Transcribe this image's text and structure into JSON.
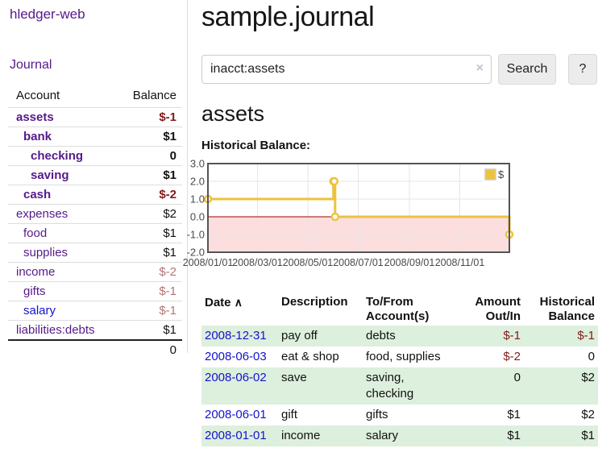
{
  "app": {
    "title": "hledger-web",
    "nav_journal": "Journal"
  },
  "colors": {
    "link_purple": "#551a8b",
    "link_blue": "#1414cc",
    "negative": "#821a1a",
    "negative_dim": "#b37676",
    "row_stripe_green": "#ddefdd",
    "sidebar_border": "#dddddd",
    "chart_series_yellow": "#edc240",
    "chart_negative_region": "#fcdede",
    "chart_zero_line": "#a00000",
    "chart_grid": "#e6e6e6",
    "chart_border": "#545454"
  },
  "sidebar": {
    "header": {
      "account": "Account",
      "balance": "Balance"
    },
    "accounts": [
      {
        "name": "assets",
        "level": 0,
        "bold": true,
        "link_color": "purple",
        "balance": "$-1",
        "balance_class": "neg"
      },
      {
        "name": "bank",
        "level": 1,
        "bold": true,
        "link_color": "purple",
        "balance": "$1",
        "balance_class": "pos"
      },
      {
        "name": "checking",
        "level": 2,
        "bold": true,
        "link_color": "purple",
        "balance": "0",
        "balance_class": "pos"
      },
      {
        "name": "saving",
        "level": 2,
        "bold": true,
        "link_color": "purple",
        "balance": "$1",
        "balance_class": "pos"
      },
      {
        "name": "cash",
        "level": 1,
        "bold": true,
        "link_color": "purple",
        "balance": "$-2",
        "balance_class": "neg"
      },
      {
        "name": "expenses",
        "level": 0,
        "bold": false,
        "link_color": "purple",
        "balance": "$2",
        "balance_class": "pos"
      },
      {
        "name": "food",
        "level": 1,
        "bold": false,
        "link_color": "purple",
        "balance": "$1",
        "balance_class": "pos"
      },
      {
        "name": "supplies",
        "level": 1,
        "bold": false,
        "link_color": "purple",
        "balance": "$1",
        "balance_class": "pos"
      },
      {
        "name": "income",
        "level": 0,
        "bold": false,
        "link_color": "purple",
        "balance": "$-2",
        "balance_class": "negdim"
      },
      {
        "name": "gifts",
        "level": 1,
        "bold": false,
        "link_color": "purple",
        "balance": "$-1",
        "balance_class": "negdim"
      },
      {
        "name": "salary",
        "level": 1,
        "bold": false,
        "link_color": "blue",
        "balance": "$-1",
        "balance_class": "negdim"
      },
      {
        "name": "liabilities:debts",
        "level": 0,
        "bold": false,
        "link_color": "purple",
        "balance": "$1",
        "balance_class": "pos"
      }
    ],
    "total": "0"
  },
  "header": {
    "title": "sample.journal"
  },
  "search": {
    "value": "inacct:assets",
    "clear_icon": "×",
    "button_label": "Search",
    "help_label": "?"
  },
  "account_page": {
    "title": "assets",
    "chart_label": "Historical Balance:"
  },
  "chart_data": {
    "type": "line",
    "title": "Historical Balance:",
    "step": true,
    "series": [
      {
        "name": "$",
        "color": "#edc240",
        "points": [
          {
            "x": "2008-01-01",
            "y": 1
          },
          {
            "x": "2008-06-01",
            "y": 2
          },
          {
            "x": "2008-06-02",
            "y": 2
          },
          {
            "x": "2008-06-03",
            "y": 0
          },
          {
            "x": "2008-12-31",
            "y": -1
          }
        ]
      }
    ],
    "x_range": [
      "2008-01-01",
      "2008-12-31"
    ],
    "x_ticks": [
      "2008/01/01",
      "2008/03/01",
      "2008/05/01",
      "2008/07/01",
      "2008/09/01",
      "2008/11/01"
    ],
    "y_ticks": [
      3,
      2,
      1,
      0,
      -1,
      -2
    ],
    "y_tick_labels": [
      "3.0",
      "2.0",
      "1.0",
      "0.0",
      "-1.0",
      "-2.0"
    ],
    "ylim": [
      -2,
      3
    ],
    "grid": true,
    "legend": {
      "label": "$",
      "position": "top-right"
    }
  },
  "register": {
    "sort_asc_icon": "∧",
    "columns": [
      {
        "label": "Date",
        "sublabel": "",
        "align": "left",
        "sorted": true
      },
      {
        "label": "Description",
        "sublabel": "",
        "align": "left",
        "sorted": false
      },
      {
        "label": "To/From",
        "sublabel": "Account(s)",
        "align": "left",
        "sorted": false
      },
      {
        "label": "Amount",
        "sublabel": "Out/In",
        "align": "right",
        "sorted": false
      },
      {
        "label": "Historical",
        "sublabel": "Balance",
        "align": "right",
        "sorted": false
      }
    ],
    "rows": [
      {
        "date": "2008-12-31",
        "description": "pay off",
        "accounts": "debts",
        "amount": "$-1",
        "amount_neg": true,
        "balance": "$-1",
        "balance_neg": true
      },
      {
        "date": "2008-06-03",
        "description": "eat & shop",
        "accounts": "food, supplies",
        "amount": "$-2",
        "amount_neg": true,
        "balance": "0",
        "balance_neg": false
      },
      {
        "date": "2008-06-02",
        "description": "save",
        "accounts": "saving, checking",
        "amount": "0",
        "amount_neg": false,
        "balance": "$2",
        "balance_neg": false
      },
      {
        "date": "2008-06-01",
        "description": "gift",
        "accounts": "gifts",
        "amount": "$1",
        "amount_neg": false,
        "balance": "$2",
        "balance_neg": false
      },
      {
        "date": "2008-01-01",
        "description": "income",
        "accounts": "salary",
        "amount": "$1",
        "amount_neg": false,
        "balance": "$1",
        "balance_neg": false
      }
    ]
  }
}
